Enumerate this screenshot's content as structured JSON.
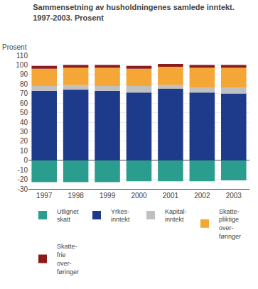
{
  "chart_data": {
    "type": "bar",
    "stacked": true,
    "title": "Sammensetning av husholdningenes samlede inntekt.",
    "subtitle": "1997-2003. Prosent",
    "ylabel": "Prosent",
    "categories": [
      "1997",
      "1998",
      "1999",
      "2000",
      "2001",
      "2002",
      "2003"
    ],
    "series": [
      {
        "name": "Utlignet\nskatt",
        "color": "#2a9d8f",
        "values": [
          -23,
          -23,
          -23,
          -22,
          -22,
          -22,
          -21
        ]
      },
      {
        "name": "Yrkes-\ninntekt",
        "color": "#1e3a8a",
        "values": [
          73,
          74,
          73,
          71,
          75,
          71,
          70
        ]
      },
      {
        "name": "Kapital-\ninntekt",
        "color": "#c0c0c0",
        "values": [
          5,
          5,
          5,
          7,
          4,
          5,
          6
        ]
      },
      {
        "name": "Skatte-\npliktige\nover-\nføringer",
        "color": "#f4a636",
        "values": [
          18,
          18,
          19,
          18,
          19,
          21,
          21
        ]
      },
      {
        "name": "Skatte-\nfrie\nover-\nføringer",
        "color": "#8b1a1a",
        "values": [
          3,
          3,
          3,
          3,
          3,
          3,
          3
        ]
      }
    ],
    "ylim": [
      -30,
      110
    ],
    "yticks": [
      -30,
      -20,
      -10,
      0,
      10,
      20,
      30,
      40,
      50,
      60,
      70,
      80,
      90,
      100,
      110
    ],
    "grid": true,
    "legend": "bottom"
  }
}
